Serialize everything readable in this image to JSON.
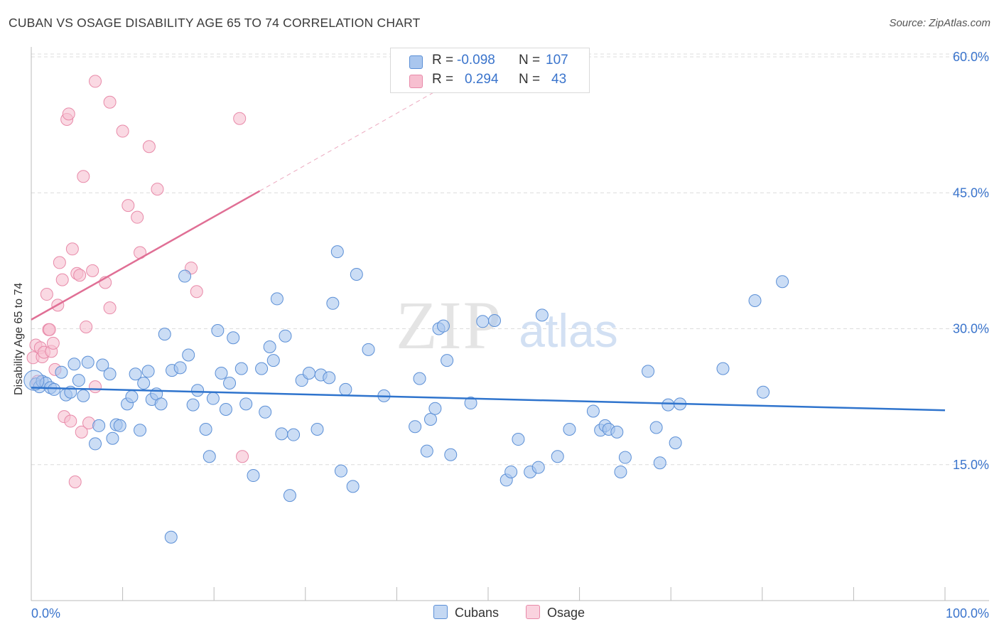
{
  "header": {
    "title": "CUBAN VS OSAGE DISABILITY AGE 65 TO 74 CORRELATION CHART",
    "source": "Source: ZipAtlas.com"
  },
  "watermark": {
    "zip": "ZIP",
    "atlas": "atlas"
  },
  "legend": {
    "rows": [
      {
        "r_label": "R =",
        "r_value": "-0.098",
        "n_label": "N =",
        "n_value": "107"
      },
      {
        "r_label": "R =",
        "r_value": "0.294",
        "n_label": "N =",
        "n_value": "43"
      }
    ]
  },
  "bottom_legend": {
    "cubans": "Cubans",
    "osage": "Osage"
  },
  "axis": {
    "y_title": "Disability Age 65 to 74",
    "x_min_label": "0.0%",
    "x_max_label": "100.0%",
    "y_ticks": [
      "15.0%",
      "30.0%",
      "45.0%",
      "60.0%"
    ]
  },
  "colors": {
    "cubans_fill": "#a9c6ee",
    "cubans_stroke": "#5b8fd6",
    "cubans_line": "#2f74cd",
    "osage_fill": "#f7bfd0",
    "osage_stroke": "#e88aa9",
    "osage_line": "#e06f95",
    "tick_text": "#3a74cc",
    "grid": "#dcdcdc"
  },
  "chart_data": {
    "type": "scatter",
    "title": "CUBAN VS OSAGE DISABILITY AGE 65 TO 74 CORRELATION CHART",
    "xlabel": "",
    "ylabel": "Disability Age 65 to 74",
    "xlim": [
      0,
      100
    ],
    "ylim": [
      0,
      63
    ],
    "x_ticks": [
      0,
      10,
      20,
      30,
      40,
      50,
      60,
      70,
      80,
      90,
      100
    ],
    "y_ticks": [
      15,
      30,
      45,
      60
    ],
    "grid": true,
    "legend_placement": "bottom-center",
    "series": [
      {
        "name": "Cubans",
        "r": -0.098,
        "n": 107,
        "trend": {
          "x": [
            0,
            100
          ],
          "y": [
            23.5,
            21.0
          ]
        },
        "points": [
          [
            0.5,
            23.9
          ],
          [
            0.9,
            23.6
          ],
          [
            1.2,
            24.2
          ],
          [
            1.6,
            24.0
          ],
          [
            2.1,
            23.5
          ],
          [
            2.5,
            23.3
          ],
          [
            3.3,
            25.2
          ],
          [
            3.8,
            22.7
          ],
          [
            4.3,
            23.0
          ],
          [
            4.7,
            26.1
          ],
          [
            5.2,
            24.3
          ],
          [
            5.7,
            22.6
          ],
          [
            6.2,
            26.3
          ],
          [
            7.0,
            17.3
          ],
          [
            7.4,
            19.3
          ],
          [
            7.8,
            26.0
          ],
          [
            8.6,
            25.0
          ],
          [
            8.9,
            17.9
          ],
          [
            9.3,
            19.4
          ],
          [
            9.7,
            19.3
          ],
          [
            10.5,
            21.7
          ],
          [
            11.0,
            22.5
          ],
          [
            11.4,
            25.0
          ],
          [
            11.9,
            18.8
          ],
          [
            12.3,
            24.0
          ],
          [
            12.8,
            25.3
          ],
          [
            13.2,
            22.2
          ],
          [
            13.7,
            22.8
          ],
          [
            14.2,
            21.7
          ],
          [
            14.6,
            29.4
          ],
          [
            15.4,
            25.4
          ],
          [
            16.3,
            25.7
          ],
          [
            16.8,
            35.8
          ],
          [
            17.2,
            27.1
          ],
          [
            17.7,
            21.6
          ],
          [
            18.2,
            23.2
          ],
          [
            19.1,
            18.9
          ],
          [
            19.5,
            15.9
          ],
          [
            19.9,
            22.3
          ],
          [
            20.4,
            29.8
          ],
          [
            20.8,
            25.1
          ],
          [
            21.3,
            21.1
          ],
          [
            21.7,
            24.0
          ],
          [
            22.1,
            29.0
          ],
          [
            23.0,
            25.6
          ],
          [
            23.5,
            21.7
          ],
          [
            24.3,
            13.8
          ],
          [
            25.2,
            25.6
          ],
          [
            25.6,
            20.8
          ],
          [
            26.1,
            28.0
          ],
          [
            26.5,
            26.5
          ],
          [
            26.9,
            33.3
          ],
          [
            27.4,
            18.4
          ],
          [
            27.8,
            29.2
          ],
          [
            28.3,
            11.6
          ],
          [
            28.7,
            18.3
          ],
          [
            29.6,
            24.3
          ],
          [
            30.4,
            25.1
          ],
          [
            31.3,
            18.9
          ],
          [
            31.7,
            24.9
          ],
          [
            32.6,
            24.6
          ],
          [
            33.0,
            32.8
          ],
          [
            33.5,
            38.5
          ],
          [
            33.9,
            14.3
          ],
          [
            34.4,
            23.3
          ],
          [
            35.2,
            12.6
          ],
          [
            35.6,
            36.0
          ],
          [
            36.9,
            27.7
          ],
          [
            38.6,
            22.6
          ],
          [
            42.0,
            19.2
          ],
          [
            42.5,
            24.5
          ],
          [
            43.3,
            16.5
          ],
          [
            43.7,
            20.0
          ],
          [
            44.2,
            21.2
          ],
          [
            44.6,
            30.0
          ],
          [
            45.1,
            30.3
          ],
          [
            45.5,
            26.5
          ],
          [
            45.9,
            16.1
          ],
          [
            48.1,
            21.8
          ],
          [
            49.4,
            30.8
          ],
          [
            50.7,
            30.9
          ],
          [
            52.0,
            13.3
          ],
          [
            52.5,
            14.2
          ],
          [
            53.3,
            17.8
          ],
          [
            54.6,
            14.2
          ],
          [
            55.5,
            14.7
          ],
          [
            55.9,
            31.5
          ],
          [
            57.6,
            15.9
          ],
          [
            58.9,
            18.9
          ],
          [
            61.5,
            20.9
          ],
          [
            62.3,
            18.8
          ],
          [
            62.8,
            19.3
          ],
          [
            63.2,
            18.9
          ],
          [
            64.1,
            18.6
          ],
          [
            64.5,
            14.2
          ],
          [
            65.0,
            15.8
          ],
          [
            67.5,
            25.3
          ],
          [
            68.4,
            19.1
          ],
          [
            68.8,
            15.2
          ],
          [
            69.7,
            21.6
          ],
          [
            70.5,
            17.4
          ],
          [
            71.0,
            21.7
          ],
          [
            75.7,
            25.6
          ],
          [
            79.2,
            33.1
          ],
          [
            80.1,
            23.0
          ],
          [
            82.2,
            35.2
          ],
          [
            15.3,
            7.0
          ]
        ]
      },
      {
        "name": "Osage",
        "r": 0.294,
        "n": 43,
        "trend": {
          "x": [
            0,
            25
          ],
          "y": [
            31.0,
            45.2
          ],
          "dashed_to": {
            "x": [
              25,
              46
            ],
            "y": [
              45.2,
              57.2
            ]
          }
        },
        "points": [
          [
            0.2,
            26.8
          ],
          [
            0.5,
            28.2
          ],
          [
            0.7,
            24.2
          ],
          [
            1.0,
            27.9
          ],
          [
            1.2,
            26.9
          ],
          [
            1.4,
            27.4
          ],
          [
            1.7,
            33.8
          ],
          [
            1.9,
            29.9
          ],
          [
            2.2,
            27.5
          ],
          [
            2.4,
            28.4
          ],
          [
            2.6,
            25.5
          ],
          [
            2.9,
            32.6
          ],
          [
            3.1,
            37.3
          ],
          [
            3.4,
            35.4
          ],
          [
            3.6,
            20.3
          ],
          [
            3.9,
            53.1
          ],
          [
            4.1,
            53.7
          ],
          [
            4.3,
            19.8
          ],
          [
            4.5,
            38.8
          ],
          [
            4.8,
            13.1
          ],
          [
            5.0,
            36.1
          ],
          [
            5.3,
            35.9
          ],
          [
            5.5,
            18.6
          ],
          [
            5.7,
            46.8
          ],
          [
            6.0,
            30.2
          ],
          [
            6.3,
            19.6
          ],
          [
            6.7,
            36.4
          ],
          [
            7.0,
            23.6
          ],
          [
            8.6,
            32.3
          ],
          [
            7.0,
            57.3
          ],
          [
            8.1,
            35.1
          ],
          [
            8.6,
            55.0
          ],
          [
            10.0,
            51.8
          ],
          [
            10.6,
            43.6
          ],
          [
            11.6,
            42.3
          ],
          [
            11.9,
            38.4
          ],
          [
            12.9,
            50.1
          ],
          [
            13.8,
            45.4
          ],
          [
            17.5,
            36.7
          ],
          [
            18.1,
            34.1
          ],
          [
            22.8,
            53.2
          ],
          [
            23.1,
            15.9
          ],
          [
            2.0,
            29.9
          ]
        ]
      }
    ]
  }
}
